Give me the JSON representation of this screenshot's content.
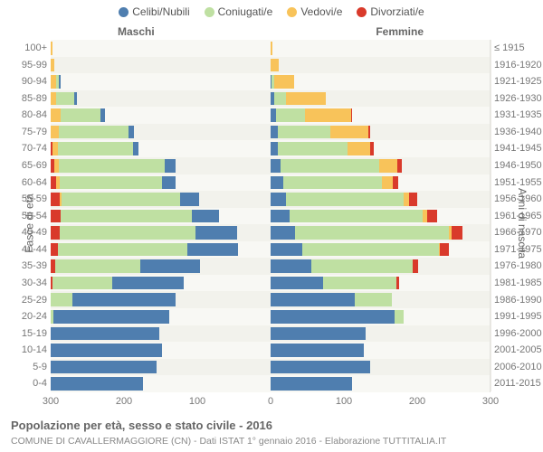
{
  "legend": [
    {
      "label": "Celibi/Nubili",
      "color": "#4f7eaf"
    },
    {
      "label": "Coniugati/e",
      "color": "#bfe0a2"
    },
    {
      "label": "Vedovi/e",
      "color": "#f8c35a"
    },
    {
      "label": "Divorziati/e",
      "color": "#d93a2b"
    }
  ],
  "col_left": "Maschi",
  "col_right": "Femmine",
  "ytitle_left": "Fasce di età",
  "ytitle_right": "Anni di nascita",
  "caption_title": "Popolazione per età, sesso e stato civile - 2016",
  "caption_sub": "COMUNE DI CAVALLERMAGGIORE (CN) - Dati ISTAT 1° gennaio 2016 - Elaborazione TUTTITALIA.IT",
  "xaxis": {
    "max": 300,
    "ticks": [
      300,
      200,
      100,
      0,
      100,
      200,
      300
    ]
  },
  "row_colors": {
    "even": "#f8f8f4",
    "odd": "#f2f2ec"
  },
  "plot_bg": "#fcfcfa",
  "grid_color": "#eceae4",
  "center_color": "#b8c4d4",
  "rows": [
    {
      "age": "100+",
      "year": "≤ 1915",
      "m": [
        0,
        0,
        3,
        0
      ],
      "f": [
        0,
        0,
        3,
        0
      ]
    },
    {
      "age": "95-99",
      "year": "1916-1920",
      "m": [
        0,
        0,
        5,
        0
      ],
      "f": [
        0,
        0,
        12,
        0
      ]
    },
    {
      "age": "90-94",
      "year": "1921-1925",
      "m": [
        2,
        4,
        7,
        0
      ],
      "f": [
        2,
        3,
        28,
        0
      ]
    },
    {
      "age": "85-89",
      "year": "1926-1930",
      "m": [
        4,
        24,
        8,
        0
      ],
      "f": [
        6,
        15,
        55,
        0
      ]
    },
    {
      "age": "80-84",
      "year": "1931-1935",
      "m": [
        6,
        55,
        13,
        0
      ],
      "f": [
        8,
        40,
        62,
        2
      ]
    },
    {
      "age": "75-79",
      "year": "1936-1940",
      "m": [
        8,
        95,
        11,
        0
      ],
      "f": [
        10,
        72,
        52,
        3
      ]
    },
    {
      "age": "70-74",
      "year": "1941-1945",
      "m": [
        8,
        102,
        8,
        2
      ],
      "f": [
        10,
        95,
        32,
        4
      ]
    },
    {
      "age": "65-69",
      "year": "1946-1950",
      "m": [
        14,
        145,
        6,
        5
      ],
      "f": [
        14,
        135,
        24,
        7
      ]
    },
    {
      "age": "60-64",
      "year": "1951-1955",
      "m": [
        18,
        140,
        4,
        8
      ],
      "f": [
        18,
        135,
        14,
        8
      ]
    },
    {
      "age": "55-59",
      "year": "1956-1960",
      "m": [
        26,
        162,
        3,
        12
      ],
      "f": [
        22,
        160,
        8,
        11
      ]
    },
    {
      "age": "50-54",
      "year": "1961-1965",
      "m": [
        38,
        178,
        0,
        14
      ],
      "f": [
        26,
        182,
        6,
        14
      ]
    },
    {
      "age": "45-49",
      "year": "1966-1970",
      "m": [
        56,
        186,
        0,
        12
      ],
      "f": [
        34,
        210,
        4,
        14
      ]
    },
    {
      "age": "40-44",
      "year": "1971-1975",
      "m": [
        70,
        176,
        0,
        10
      ],
      "f": [
        44,
        186,
        2,
        12
      ]
    },
    {
      "age": "35-39",
      "year": "1976-1980",
      "m": [
        82,
        116,
        0,
        6
      ],
      "f": [
        56,
        138,
        0,
        8
      ]
    },
    {
      "age": "30-34",
      "year": "1981-1985",
      "m": [
        98,
        82,
        0,
        2
      ],
      "f": [
        72,
        100,
        0,
        4
      ]
    },
    {
      "age": "25-29",
      "year": "1986-1990",
      "m": [
        140,
        30,
        0,
        0
      ],
      "f": [
        116,
        50,
        0,
        0
      ]
    },
    {
      "age": "20-24",
      "year": "1991-1995",
      "m": [
        158,
        4,
        0,
        0
      ],
      "f": [
        170,
        12,
        0,
        0
      ]
    },
    {
      "age": "15-19",
      "year": "1996-2000",
      "m": [
        148,
        0,
        0,
        0
      ],
      "f": [
        130,
        0,
        0,
        0
      ]
    },
    {
      "age": "10-14",
      "year": "2001-2005",
      "m": [
        152,
        0,
        0,
        0
      ],
      "f": [
        128,
        0,
        0,
        0
      ]
    },
    {
      "age": "5-9",
      "year": "2006-2010",
      "m": [
        144,
        0,
        0,
        0
      ],
      "f": [
        136,
        0,
        0,
        0
      ]
    },
    {
      "age": "0-4",
      "year": "2011-2015",
      "m": [
        126,
        0,
        0,
        0
      ],
      "f": [
        112,
        0,
        0,
        0
      ]
    }
  ]
}
